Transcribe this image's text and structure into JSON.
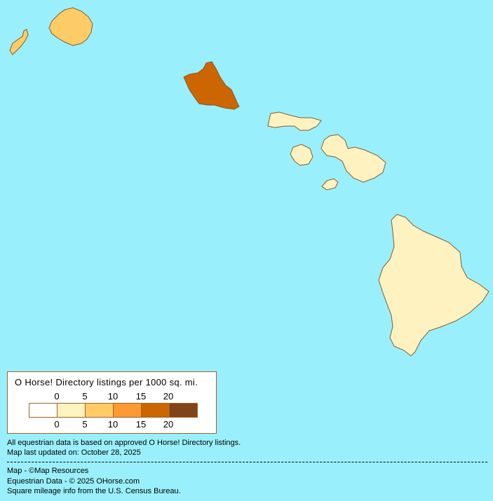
{
  "colors": {
    "ocean": "#99f0fc",
    "bin0": "#ffffff",
    "bin1": "#fdf2c0",
    "bin2": "#fdcc66",
    "bin3": "#fd9933",
    "bin4": "#cc6600",
    "bin5": "#7f4418",
    "border": "#a0622a"
  },
  "islands": [
    {
      "name": "Niihau",
      "bin": 2
    },
    {
      "name": "Kauai",
      "bin": 2
    },
    {
      "name": "Oahu",
      "bin": 4
    },
    {
      "name": "Molokai",
      "bin": 1
    },
    {
      "name": "Lanai",
      "bin": 1
    },
    {
      "name": "Maui",
      "bin": 1
    },
    {
      "name": "Kahoolawe",
      "bin": 1
    },
    {
      "name": "Hawaii",
      "bin": 1
    }
  ],
  "legend": {
    "title": "O Horse! Directory listings per 1000 sq. mi.",
    "ticks": [
      "0",
      "5",
      "10",
      "15",
      "20"
    ]
  },
  "notes": {
    "line1": "All equestrian data is based on approved O Horse! Directory listings.",
    "line2": "Map last updated on: October 28, 2025",
    "credit1": "Map - ©Map Resources",
    "credit2": "Equestrian Data - © 2025 OHorse.com",
    "credit3": "Square mileage info from the U.S. Census Bureau."
  }
}
